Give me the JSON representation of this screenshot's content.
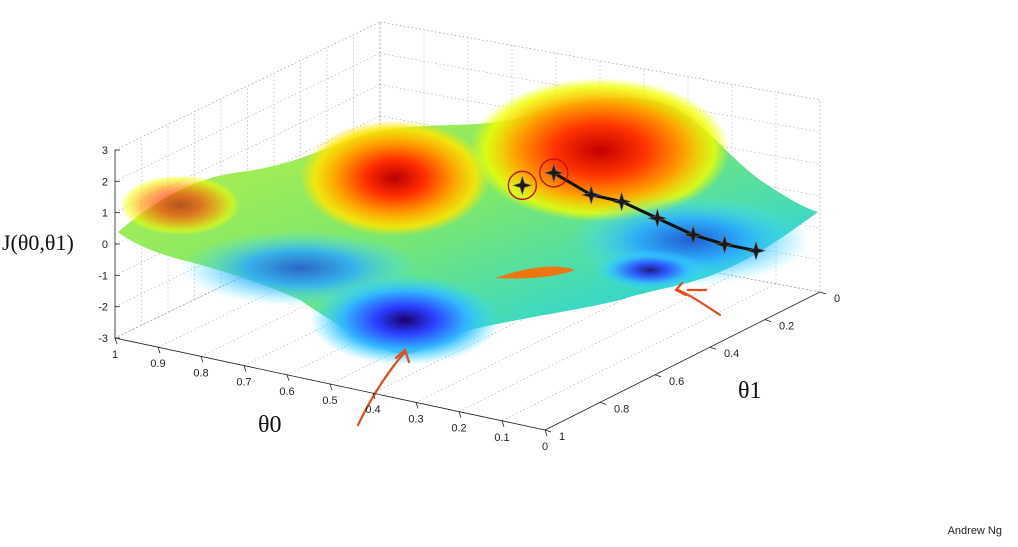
{
  "chart_data": {
    "type": "surface",
    "z_label": "J(θ0,θ1)",
    "x_label": "θ0",
    "y_label": "θ1",
    "zlim": [
      -3,
      3
    ],
    "z_ticks": [
      "3",
      "2",
      "1",
      "0",
      "-1",
      "-2",
      "-3"
    ],
    "theta0_ticks": [
      "1",
      "0.9",
      "0.8",
      "0.7",
      "0.6",
      "0.5",
      "0.4",
      "0.3",
      "0.2",
      "0.1",
      "0"
    ],
    "theta1_ticks": [
      "0",
      "0.2",
      "0.4",
      "0.6",
      "0.8",
      "1"
    ],
    "grid": true,
    "colormap": "jet",
    "descent_path": [
      {
        "theta0": 0.3,
        "theta1": 0.48,
        "J": 2.2
      },
      {
        "theta0": 0.25,
        "theta1": 0.42,
        "J": 1.4
      },
      {
        "theta0": 0.21,
        "theta1": 0.37,
        "J": 1.1
      },
      {
        "theta0": 0.17,
        "theta1": 0.3,
        "J": 0.4
      },
      {
        "theta0": 0.13,
        "theta1": 0.23,
        "J": -0.3
      },
      {
        "theta0": 0.1,
        "theta1": 0.16,
        "J": -0.8
      },
      {
        "theta0": 0.07,
        "theta1": 0.09,
        "J": -1.2
      }
    ],
    "second_start": {
      "theta0": 0.33,
      "theta1": 0.55,
      "J": 2.0
    }
  },
  "credit": "Andrew Ng"
}
